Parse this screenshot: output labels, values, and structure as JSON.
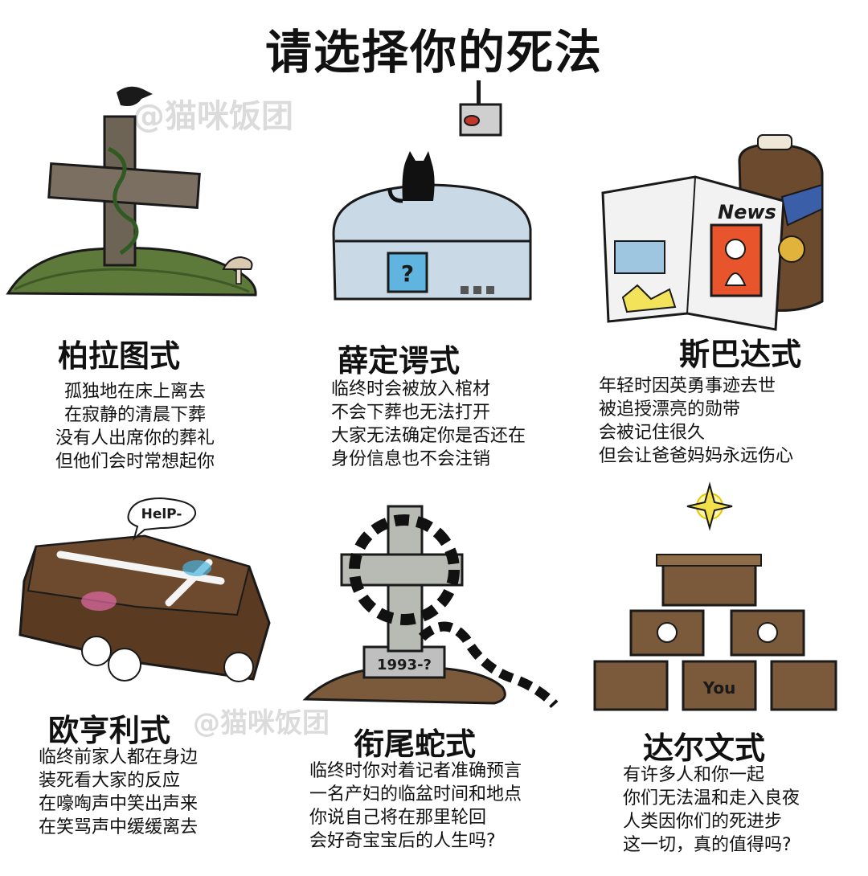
{
  "page": {
    "title": "请选择你的死法"
  },
  "watermark": {
    "text": "猫咪饭团",
    "symbol": "@"
  },
  "items": [
    {
      "name": "柏拉图式",
      "lines": [
        "孤独地在床上离去",
        "在寂静的清晨下葬",
        "没有人出席你的葬礼",
        "但他们会时常想起你"
      ]
    },
    {
      "name": "薛定谔式",
      "lines": [
        "临终时会被放入棺材",
        "不会下葬也无法打开",
        "大家无法确定你是否还在",
        "身份信息也不会注销"
      ]
    },
    {
      "name": "斯巴达式",
      "lines": [
        "年轻时因英勇事迹去世",
        "被追授漂亮的勋带",
        "会被记住很久",
        "但会让爸爸妈妈永远伤心"
      ]
    },
    {
      "name": "欧亨利式",
      "lines": [
        "临终前家人都在身边",
        "装死看大家的反应",
        "在嚎啕声中笑出声来",
        "在笑骂声中缓缓离去"
      ]
    },
    {
      "name": "衔尾蛇式",
      "lines": [
        "临终时你对着记者准确预言",
        "一名产妇的临盆时间和地点",
        "你说自己将在那里轮回",
        "会好奇宝宝后的人生吗?"
      ]
    },
    {
      "name": "达尔文式",
      "lines": [
        "有许多人和你一起",
        "你们无法温和走入良夜",
        "人类因你们的死进步",
        "这一切，真的值得吗?"
      ]
    }
  ],
  "illustration_text": {
    "newspaper": "News",
    "help_bubble": "HelP-",
    "tombstone_date": "1993-?",
    "box_label": "You",
    "screen_mark": "?"
  }
}
